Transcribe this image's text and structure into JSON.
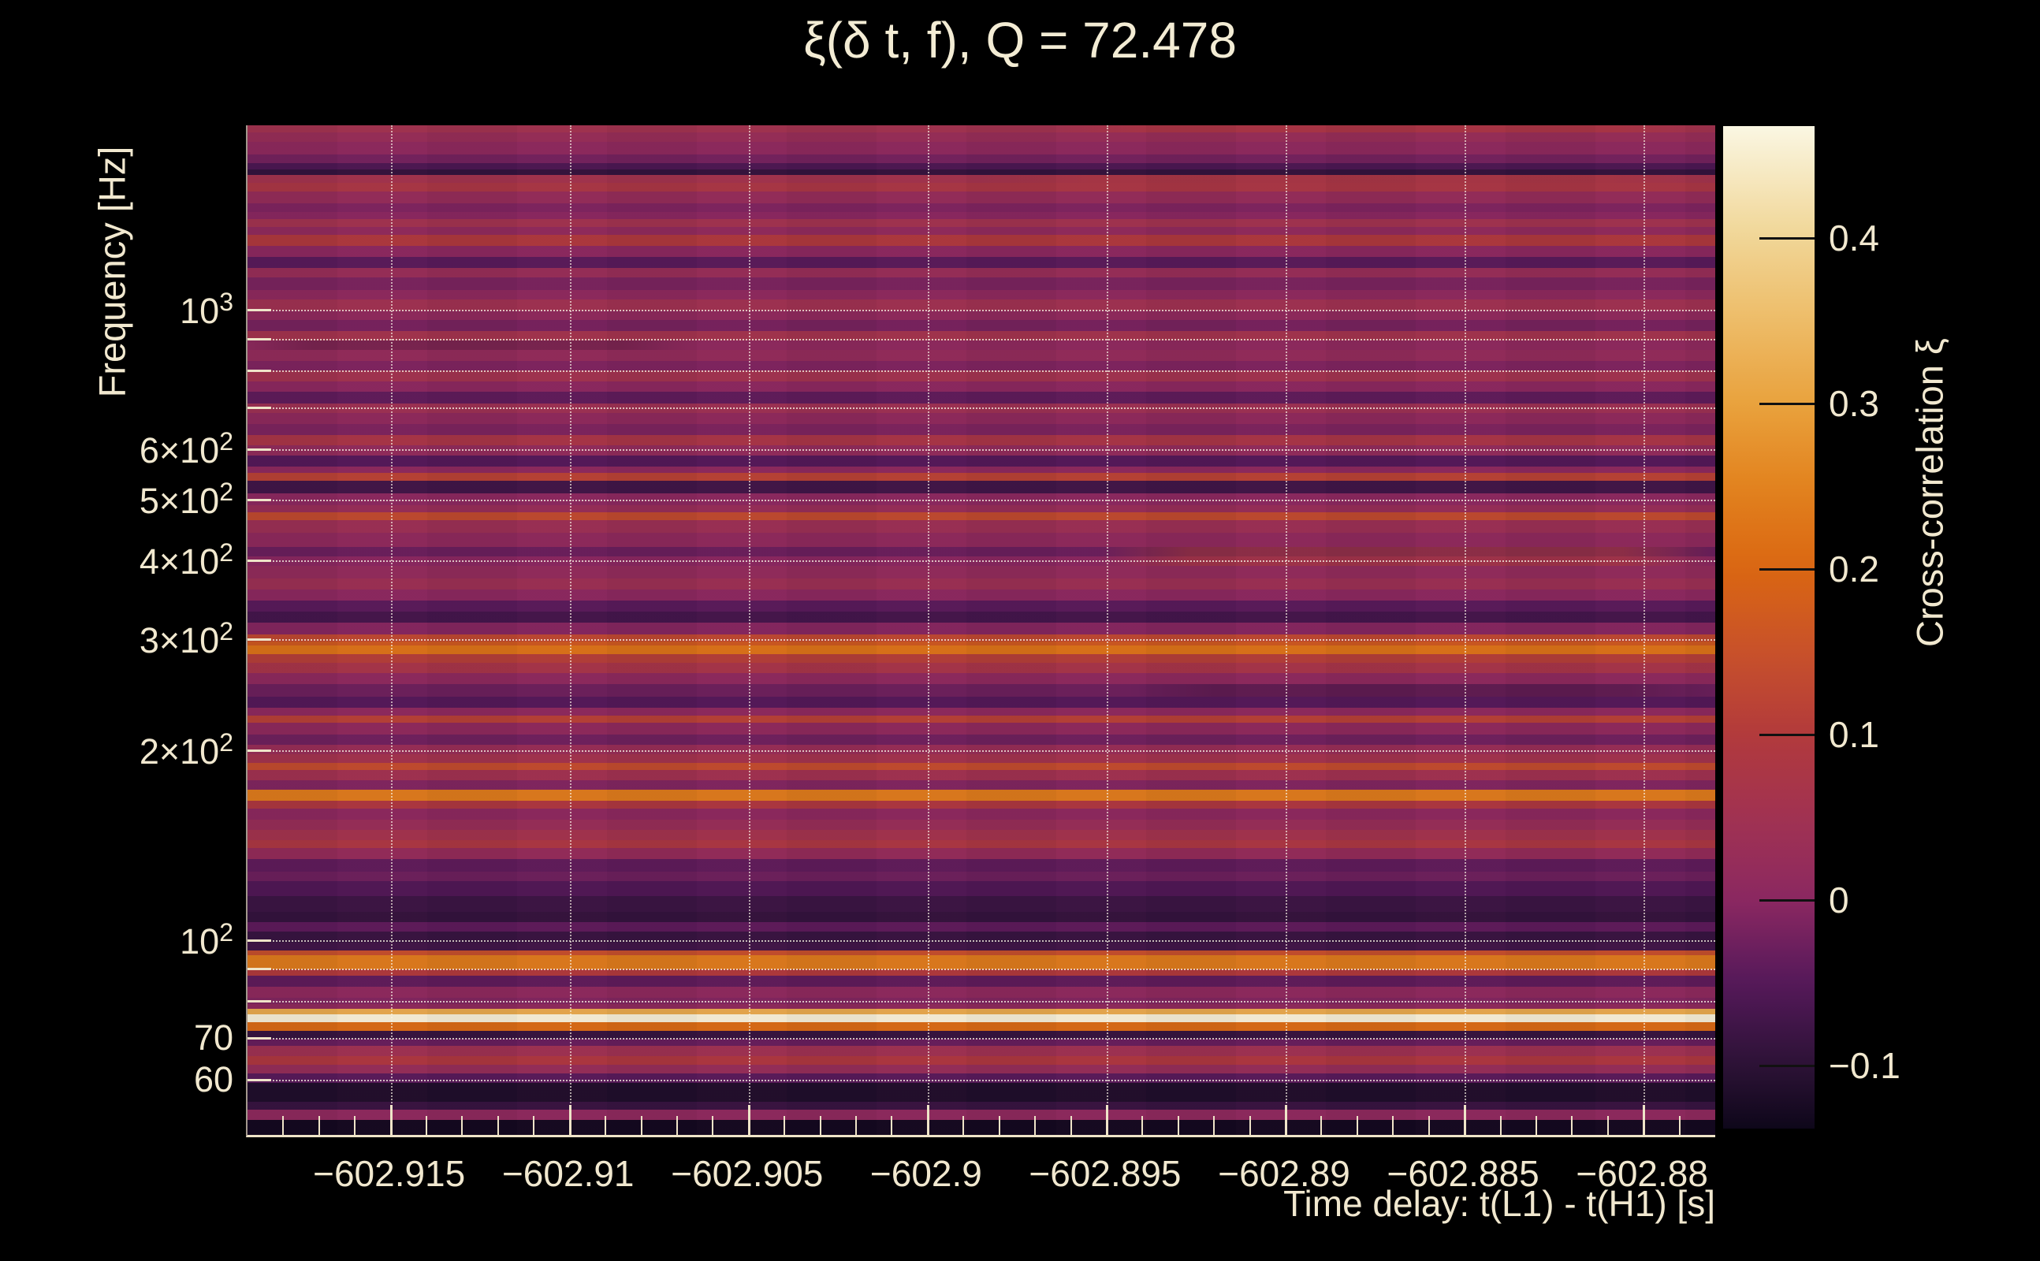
{
  "title": "ξ(δ t, f), Q = 72.478",
  "axes": {
    "x": {
      "label": "Time delay: t(L1) - t(H1) [s]",
      "min": -602.919,
      "max": -602.878,
      "minor_step": 0.001,
      "major_ticks": [
        {
          "value": -602.915,
          "label": "−602.915"
        },
        {
          "value": -602.91,
          "label": "−602.91"
        },
        {
          "value": -602.905,
          "label": "−602.905"
        },
        {
          "value": -602.9,
          "label": "−602.9"
        },
        {
          "value": -602.895,
          "label": "−602.895"
        },
        {
          "value": -602.89,
          "label": "−602.89"
        },
        {
          "value": -602.885,
          "label": "−602.885"
        },
        {
          "value": -602.88,
          "label": "−602.88"
        }
      ]
    },
    "y": {
      "label": "Frequency [Hz]",
      "scale": "log",
      "min_hz": 49.1,
      "max_hz": 1961,
      "gridline_freqs": [
        1000,
        900,
        800,
        700,
        600,
        500,
        400,
        300,
        200,
        100,
        90,
        80,
        70,
        60
      ],
      "labeled_ticks": [
        {
          "f": 1000,
          "base": "10",
          "exp": "3"
        },
        {
          "f": 600,
          "base": "6×10",
          "exp": "2"
        },
        {
          "f": 500,
          "base": "5×10",
          "exp": "2"
        },
        {
          "f": 400,
          "base": "4×10",
          "exp": "2"
        },
        {
          "f": 300,
          "base": "3×10",
          "exp": "2"
        },
        {
          "f": 200,
          "base": "2×10",
          "exp": "2"
        },
        {
          "f": 100,
          "base": "10",
          "exp": "2"
        },
        {
          "f": 70,
          "base": "70",
          "exp": ""
        },
        {
          "f": 60,
          "base": "60",
          "exp": ""
        }
      ]
    },
    "colorbar": {
      "label": "Cross-correlation ξ",
      "min": -0.138,
      "max": 0.4676,
      "ticks": [
        {
          "value": 0.4,
          "label": "0.4"
        },
        {
          "value": 0.3,
          "label": "0.3"
        },
        {
          "value": 0.2,
          "label": "0.2"
        },
        {
          "value": 0.1,
          "label": "0.1"
        },
        {
          "value": 0.0,
          "label": "0"
        },
        {
          "value": -0.1,
          "label": "−0.1"
        }
      ]
    }
  },
  "palette": [
    [
      -0.142,
      "#0b0617"
    ],
    [
      -0.1,
      "#2c1236"
    ],
    [
      -0.05,
      "#55195a"
    ],
    [
      0.0,
      "#8b2861"
    ],
    [
      0.05,
      "#a13252"
    ],
    [
      0.1,
      "#b23a3c"
    ],
    [
      0.15,
      "#c8512a"
    ],
    [
      0.2,
      "#da6612"
    ],
    [
      0.25,
      "#e2821e"
    ],
    [
      0.3,
      "#e9a23d"
    ],
    [
      0.35,
      "#edbc68"
    ],
    [
      0.4,
      "#f0d595"
    ],
    [
      0.468,
      "#fbf7e3"
    ]
  ],
  "chart_data": {
    "type": "heatmap",
    "xlabel": "Time delay: t(L1) - t(H1) [s]",
    "ylabel": "Frequency [Hz]",
    "zlabel": "Cross-correlation ξ",
    "x_range_s": [
      -602.919,
      -602.878
    ],
    "f_range_hz": [
      49.1,
      1961
    ],
    "xi_range": [
      -0.138,
      0.4676
    ],
    "grid": true,
    "legend_position": "right-colorbar",
    "stripes_f_top_hz_and_xi": [
      [
        1961,
        0.055
      ],
      [
        1911,
        0.03
      ],
      [
        1846,
        0.01
      ],
      [
        1763,
        -0.02
      ],
      [
        1708,
        -0.06
      ],
      [
        1669,
        -0.09
      ],
      [
        1636,
        0.06
      ],
      [
        1589,
        0.08
      ],
      [
        1540,
        0.025
      ],
      [
        1475,
        -0.01
      ],
      [
        1429,
        0.0
      ],
      [
        1392,
        0.055
      ],
      [
        1353,
        0.015
      ],
      [
        1314,
        0.095
      ],
      [
        1263,
        0.005
      ],
      [
        1213,
        -0.045
      ],
      [
        1165,
        0.03
      ],
      [
        1125,
        -0.015
      ],
      [
        1075,
        0.01
      ],
      [
        1038,
        0.05
      ],
      [
        997,
        0.012
      ],
      [
        963,
        -0.018
      ],
      [
        925,
        0.06
      ],
      [
        894,
        0.01
      ],
      [
        863,
        0.02
      ],
      [
        829,
        -0.01
      ],
      [
        801,
        0.055
      ],
      [
        770,
        0.005
      ],
      [
        741,
        -0.04
      ],
      [
        710,
        0.045
      ],
      [
        686,
        0.012
      ],
      [
        659,
        -0.012
      ],
      [
        633,
        0.075
      ],
      [
        610,
        0.018
      ],
      [
        587,
        -0.05
      ],
      [
        564,
        0.008
      ],
      [
        551,
        0.12
      ],
      [
        535,
        -0.075
      ],
      [
        511,
        0.005
      ],
      [
        490,
        0.03
      ],
      [
        477,
        0.135
      ],
      [
        464,
        0.04
      ],
      [
        443,
        0.012
      ],
      [
        420,
        -0.03
      ],
      [
        406,
        0.0
      ],
      [
        392,
        0.018
      ],
      [
        375,
        0.042
      ],
      [
        360,
        0.005
      ],
      [
        346,
        -0.045
      ],
      [
        332,
        -0.07
      ],
      [
        319,
        -0.005
      ],
      [
        305,
        0.13
      ],
      [
        298,
        0.17
      ],
      [
        293,
        0.225
      ],
      [
        284,
        0.11
      ],
      [
        275,
        0.07
      ],
      [
        265,
        0.01
      ],
      [
        255,
        -0.028
      ],
      [
        243,
        -0.05
      ],
      [
        234,
        0.008
      ],
      [
        227,
        0.115
      ],
      [
        221,
        0.012
      ],
      [
        212,
        -0.025
      ],
      [
        204,
        0.032
      ],
      [
        197,
        0.058
      ],
      [
        191,
        0.14
      ],
      [
        186,
        0.052
      ],
      [
        179.4,
        -0.008
      ],
      [
        173.3,
        0.24
      ],
      [
        166.5,
        0.09
      ],
      [
        161.8,
        0.006
      ],
      [
        155.4,
        0.03
      ],
      [
        149.6,
        0.058
      ],
      [
        144.2,
        0.085
      ],
      [
        140.0,
        0.022
      ],
      [
        134.5,
        -0.04
      ],
      [
        128.5,
        -0.028
      ],
      [
        124.1,
        -0.055
      ],
      [
        117.5,
        -0.08
      ],
      [
        110.9,
        -0.09
      ],
      [
        106.8,
        -0.042
      ],
      [
        103.2,
        -0.085
      ],
      [
        99.1,
        -0.075
      ],
      [
        96.3,
        0.145
      ],
      [
        94.7,
        0.24
      ],
      [
        89.9,
        0.1
      ],
      [
        87.8,
        -0.04
      ],
      [
        84.4,
        0.01
      ],
      [
        81.0,
        -0.008
      ],
      [
        79.2,
        0.012
      ],
      [
        77.8,
        0.32
      ],
      [
        76.3,
        0.46
      ],
      [
        74.1,
        0.21
      ],
      [
        71.8,
        -0.088
      ],
      [
        69.8,
        -0.032
      ],
      [
        68.0,
        0.048
      ],
      [
        65.5,
        0.09
      ],
      [
        63.5,
        0.028
      ],
      [
        61.5,
        -0.045
      ],
      [
        59.4,
        -0.115
      ],
      [
        55.4,
        -0.085
      ],
      [
        53.9,
        0.01
      ],
      [
        51.9,
        -0.13
      ]
    ]
  }
}
